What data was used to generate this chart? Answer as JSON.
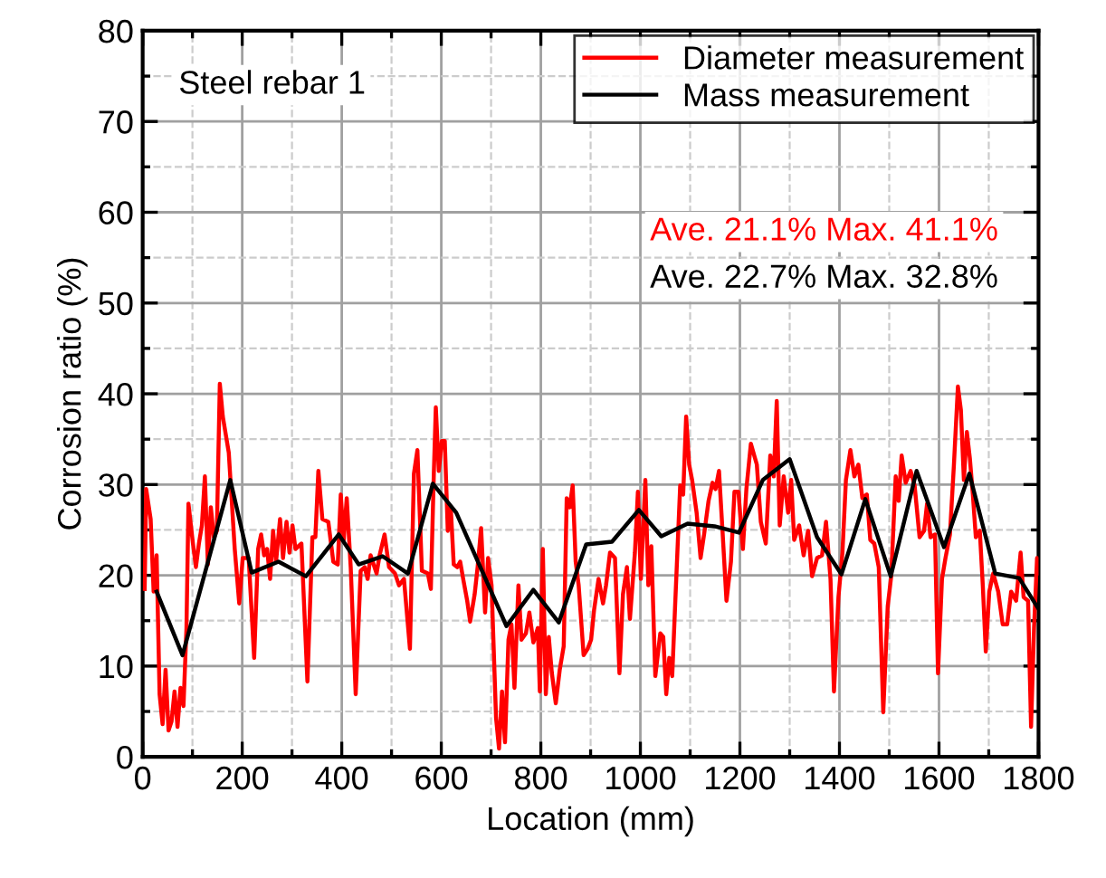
{
  "chart_data": {
    "type": "line",
    "xlabel": "Location (mm)",
    "ylabel": "Corrosion ratio (%)",
    "xlim": [
      0,
      1800
    ],
    "ylim": [
      0,
      80
    ],
    "xticks": [
      0,
      200,
      400,
      600,
      800,
      1000,
      1200,
      1400,
      1600,
      1800
    ],
    "yticks": [
      0,
      10,
      20,
      30,
      40,
      50,
      60,
      70,
      80
    ],
    "grid": true,
    "legend": "top right",
    "line_style": "solid",
    "marker": "none",
    "annotations": [
      "Steel rebar 1",
      "Ave. 21.1% Max. 41.1%",
      "Ave. 22.7% Max. 32.8%"
    ],
    "series": [
      {
        "name": "Diameter measurement",
        "color": "#ff0000",
        "x": [
          4,
          7,
          16,
          22,
          28,
          34,
          40,
          46,
          52,
          58,
          64,
          70,
          76,
          82,
          88,
          92,
          101,
          107,
          113,
          119,
          125,
          131,
          137,
          143,
          149,
          155,
          161,
          173,
          179,
          185,
          194,
          201,
          213,
          224,
          232,
          238,
          244,
          250,
          256,
          262,
          268,
          276,
          282,
          289,
          295,
          301,
          307,
          319,
          331,
          341,
          347,
          353,
          361,
          373,
          383,
          392,
          398,
          404,
          410,
          418,
          428,
          438,
          446,
          452,
          458,
          470,
          476,
          486,
          495,
          507,
          515,
          525,
          537,
          545,
          552,
          561,
          573,
          579,
          585,
          589,
          595,
          601,
          607,
          613,
          619,
          625,
          632,
          638,
          644,
          652,
          658,
          667,
          673,
          680,
          688,
          694,
          701,
          710,
          716,
          722,
          728,
          735,
          741,
          747,
          755,
          761,
          770,
          777,
          785,
          794,
          798,
          804,
          810,
          816,
          822,
          830,
          838,
          846,
          852,
          858,
          864,
          870,
          876,
          886,
          894,
          901,
          907,
          916,
          925,
          931,
          939,
          949,
          958,
          965,
          973,
          979,
          989,
          995,
          1001,
          1010,
          1016,
          1022,
          1030,
          1040,
          1046,
          1052,
          1058,
          1064,
          1070,
          1080,
          1086,
          1092,
          1098,
          1104,
          1113,
          1121,
          1128,
          1137,
          1145,
          1151,
          1158,
          1165,
          1173,
          1182,
          1189,
          1197,
          1206,
          1213,
          1222,
          1234,
          1242,
          1252,
          1261,
          1268,
          1274,
          1280,
          1288,
          1297,
          1303,
          1309,
          1319,
          1328,
          1337,
          1345,
          1355,
          1365,
          1373,
          1382,
          1389,
          1398,
          1406,
          1413,
          1422,
          1430,
          1438,
          1446,
          1455,
          1462,
          1470,
          1479,
          1488,
          1497,
          1504,
          1513,
          1519,
          1525,
          1533,
          1543,
          1551,
          1561,
          1570,
          1576,
          1583,
          1592,
          1598,
          1606,
          1613,
          1622,
          1630,
          1638,
          1644,
          1650,
          1656,
          1662,
          1668,
          1674,
          1682,
          1688,
          1694,
          1701,
          1709,
          1719,
          1728,
          1737,
          1745,
          1755,
          1764,
          1770,
          1779,
          1785,
          1791,
          1797,
          1800
        ],
        "values": [
          18.5,
          29.5,
          26.2,
          18.2,
          22.2,
          6.9,
          3.6,
          9.6,
          2.9,
          3.9,
          7.2,
          3.3,
          7.6,
          5.6,
          14.2,
          27.9,
          23.5,
          20.9,
          23.5,
          25.5,
          30.9,
          21.2,
          27.5,
          24.2,
          24.9,
          41.1,
          37.5,
          33.5,
          28.2,
          22.9,
          16.9,
          21.9,
          21.9,
          10.9,
          22.9,
          24.5,
          22.2,
          22.9,
          19.6,
          24.9,
          21.5,
          26.2,
          21.9,
          25.9,
          22.5,
          25.5,
          22.9,
          23.5,
          8.3,
          24.2,
          24.2,
          31.5,
          26.2,
          25.9,
          21.5,
          21.2,
          28.9,
          23.9,
          28.5,
          20.9,
          6.9,
          20.5,
          20.9,
          19.6,
          22.2,
          20.2,
          22.2,
          24.5,
          20.9,
          20.2,
          18.9,
          19.6,
          11.9,
          31.2,
          33.8,
          20.5,
          20.2,
          18.5,
          31.2,
          38.5,
          31.5,
          34.8,
          34.8,
          24.9,
          27.5,
          21.2,
          20.9,
          21.5,
          19.6,
          17.2,
          14.9,
          17.9,
          20.9,
          25.2,
          15.9,
          21.9,
          18.9,
          4.3,
          0.9,
          7.2,
          1.6,
          12.9,
          14.6,
          7.6,
          18.9,
          12.9,
          13.6,
          15.9,
          12.6,
          14.2,
          7.2,
          22.9,
          6.9,
          13.2,
          9.3,
          5.9,
          9.6,
          12.2,
          28.5,
          27.5,
          29.9,
          21.5,
          18.9,
          11.2,
          11.9,
          12.9,
          16.2,
          19.6,
          16.9,
          18.9,
          22.5,
          21.9,
          9.2,
          17.9,
          20.9,
          15.2,
          22.5,
          29.2,
          19.6,
          30.5,
          18.9,
          23.2,
          8.9,
          13.6,
          13.2,
          6.9,
          10.9,
          8.9,
          16.9,
          29.9,
          28.9,
          37.5,
          32.2,
          30.5,
          26.9,
          21.9,
          24.5,
          28.2,
          30.2,
          29.5,
          31.5,
          24.9,
          17.2,
          21.5,
          29.2,
          29.2,
          22.9,
          29.5,
          34.5,
          32.2,
          25.9,
          23.5,
          33.2,
          30.9,
          39.2,
          25.5,
          30.9,
          26.9,
          30.5,
          23.9,
          25.5,
          22.2,
          24.9,
          19.9,
          21.9,
          22.2,
          25.9,
          19.6,
          7.2,
          17.6,
          22.5,
          30.5,
          33.8,
          30.9,
          32.2,
          28.5,
          28.9,
          23.9,
          23.5,
          20.9,
          4.9,
          16.6,
          19.9,
          30.9,
          28.2,
          33.2,
          30.2,
          31.5,
          29.9,
          24.2,
          24.9,
          27.9,
          24.2,
          24.5,
          9.2,
          19.6,
          21.9,
          24.5,
          32.2,
          40.8,
          38.2,
          30.5,
          35.8,
          32.9,
          28.9,
          24.2,
          24.9,
          18.9,
          11.6,
          18.2,
          20.2,
          18.2,
          14.6,
          14.6,
          18.2,
          17.2,
          22.5,
          17.6,
          17.2,
          3.3,
          14.2,
          21.9,
          20.2
        ]
      },
      {
        "name": "Mass measurement",
        "color": "#000000",
        "x": [
          28,
          80,
          176,
          219,
          273,
          328,
          394,
          434,
          482,
          533,
          583,
          630,
          731,
          785,
          836,
          891,
          943,
          997,
          1042,
          1095,
          1149,
          1198,
          1246,
          1300,
          1355,
          1404,
          1452,
          1503,
          1555,
          1610,
          1661,
          1713,
          1761,
          1800
        ],
        "values": [
          18.2,
          11.2,
          30.5,
          20.3,
          21.5,
          19.9,
          24.5,
          21.2,
          22.1,
          20.2,
          30.1,
          26.9,
          14.4,
          18.4,
          14.8,
          23.4,
          23.7,
          27.2,
          24.3,
          25.7,
          25.4,
          24.7,
          30.5,
          32.8,
          24.2,
          20.1,
          28.4,
          19.9,
          31.5,
          23.1,
          31.2,
          20.2,
          19.7,
          16.3
        ]
      }
    ]
  }
}
